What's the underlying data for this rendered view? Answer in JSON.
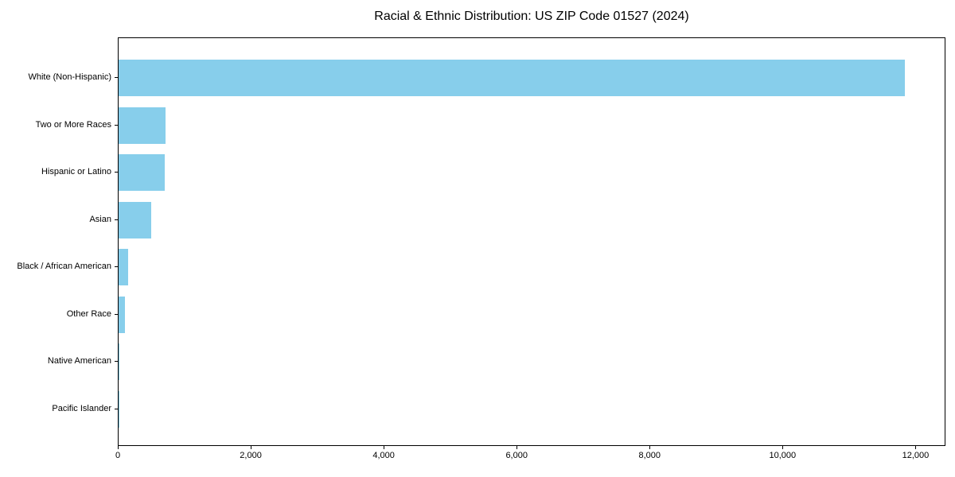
{
  "chart_data": {
    "type": "bar",
    "orientation": "horizontal",
    "title": "Racial & Ethnic Distribution: US ZIP Code 01527 (2024)",
    "categories": [
      "White (Non-Hispanic)",
      "Two or More Races",
      "Hispanic or Latino",
      "Asian",
      "Black / African American",
      "Other Race",
      "Native American",
      "Pacific Islander"
    ],
    "values": [
      11832,
      710,
      695,
      485,
      140,
      95,
      12,
      3
    ],
    "xlabel": "",
    "ylabel": "",
    "xlim": [
      0,
      12450
    ],
    "xticks": [
      0,
      2000,
      4000,
      6000,
      8000,
      10000,
      12000
    ],
    "xtick_labels": [
      "0",
      "2,000",
      "4,000",
      "6,000",
      "8,000",
      "10,000",
      "12,000"
    ],
    "bar_color": "#87CEEB",
    "axis_color": "#000000",
    "text_color": "#000000",
    "background_color": "#ffffff",
    "grid": false,
    "legend": null
  }
}
